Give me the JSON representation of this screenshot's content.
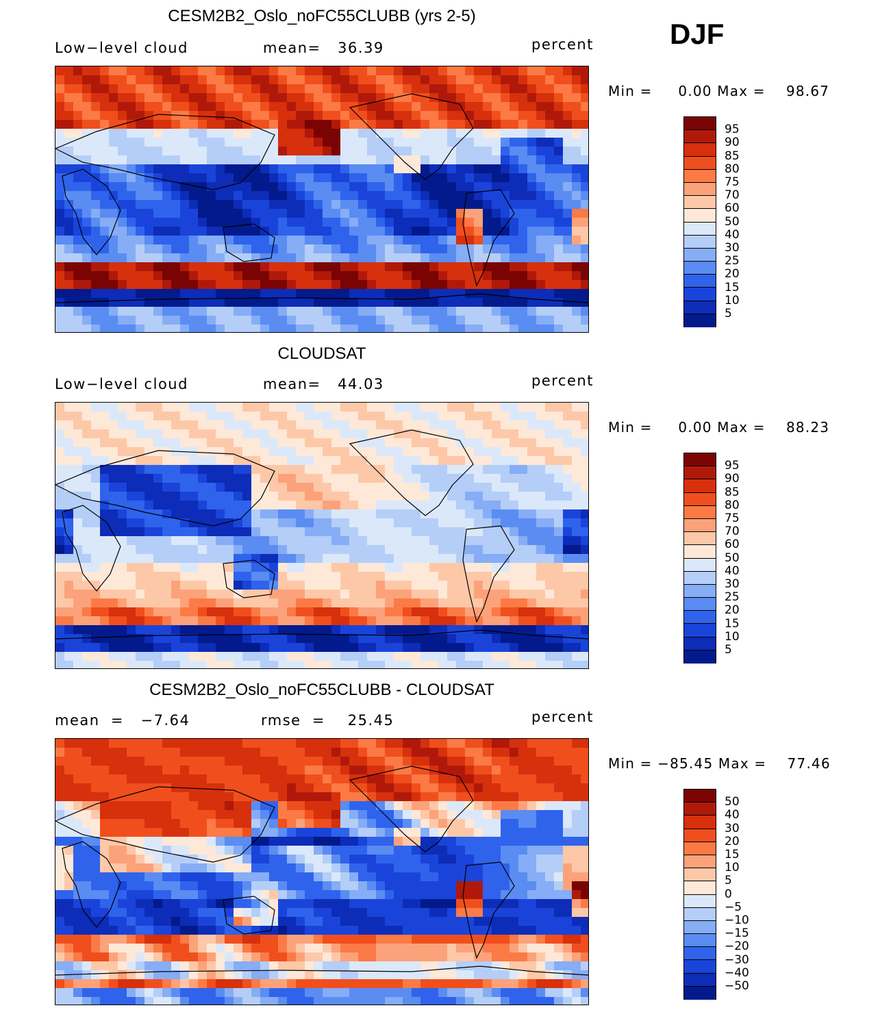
{
  "season": "DJF",
  "panels": [
    {
      "title": "CESM2B2_Oslo_noFC55CLUBB (yrs 2-5)",
      "left_label": "Low−level cloud",
      "mid_label": "mean=   36.39",
      "right_label": "percent",
      "minmax": "Min =     0.00 Max =    98.67",
      "kind": "model"
    },
    {
      "title": "CLOUDSAT",
      "left_label": "Low−level cloud",
      "mid_label": "mean=   44.03",
      "right_label": "percent",
      "minmax": "Min =     0.00 Max =    88.23",
      "kind": "obs"
    },
    {
      "title": "CESM2B2_Oslo_noFC55CLUBB - CLOUDSAT",
      "left_label": "mean  =   −7.64",
      "mid_label": "rmse  =    25.45",
      "right_label": "percent",
      "minmax": "Min = −85.45 Max =    77.46",
      "kind": "diff"
    }
  ],
  "colorbars": {
    "colors": [
      "#7a0403",
      "#b0190a",
      "#d6300d",
      "#f04f1d",
      "#fb7a46",
      "#fca27a",
      "#fdc8a8",
      "#fee8d8",
      "#dbe8fa",
      "#b4cef8",
      "#86adf5",
      "#5a8cf2",
      "#2f63ec",
      "#1a44d9",
      "#0d2cb8",
      "#031a8c"
    ],
    "abs_labels": [
      "95",
      "90",
      "85",
      "80",
      "75",
      "70",
      "60",
      "50",
      "40",
      "30",
      "25",
      "20",
      "15",
      "10",
      "5"
    ],
    "diff_labels": [
      "50",
      "40",
      "30",
      "20",
      "15",
      "10",
      "5",
      "0",
      "−5",
      "−10",
      "−15",
      "−20",
      "−30",
      "−40",
      "−50"
    ]
  },
  "chart_data": [
    {
      "type": "heatmap",
      "title": "CESM2B2_Oslo_noFC55CLUBB (yrs 2-5)",
      "variable": "Low-level cloud",
      "units": "percent",
      "mean": 36.39,
      "min": 0.0,
      "max": 98.67,
      "levels": [
        5,
        10,
        15,
        20,
        25,
        30,
        40,
        50,
        60,
        70,
        75,
        80,
        85,
        90,
        95
      ]
    },
    {
      "type": "heatmap",
      "title": "CLOUDSAT",
      "variable": "Low-level cloud",
      "units": "percent",
      "mean": 44.03,
      "min": 0.0,
      "max": 88.23,
      "levels": [
        5,
        10,
        15,
        20,
        25,
        30,
        40,
        50,
        60,
        70,
        75,
        80,
        85,
        90,
        95
      ]
    },
    {
      "type": "heatmap",
      "title": "CESM2B2_Oslo_noFC55CLUBB - CLOUDSAT",
      "units": "percent",
      "mean": -7.64,
      "rmse": 25.45,
      "min": -85.45,
      "max": 77.46,
      "levels": [
        -50,
        -40,
        -30,
        -20,
        -15,
        -10,
        -5,
        0,
        5,
        10,
        15,
        20,
        30,
        40,
        50
      ]
    }
  ]
}
